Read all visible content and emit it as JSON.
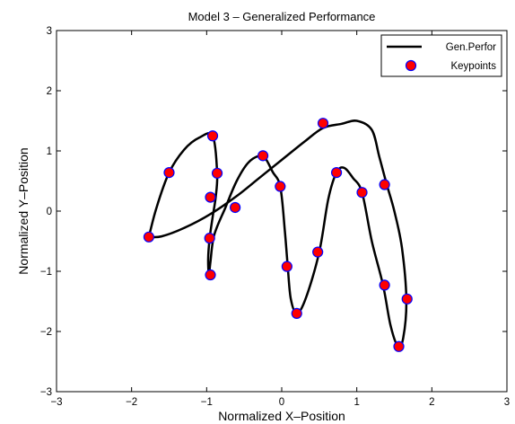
{
  "chart_data": {
    "type": "line",
    "title": "Model 3 – Generalized Performance",
    "xlabel": "Normalized X–Position",
    "ylabel": "Normalized Y–Position",
    "xlim": [
      -3,
      3
    ],
    "ylim": [
      -3,
      3
    ],
    "xticks": [
      -3,
      -2,
      -1,
      0,
      1,
      2,
      3
    ],
    "yticks": [
      -3,
      -2,
      -1,
      0,
      1,
      2,
      3
    ],
    "xtick_labels": [
      "−3",
      "−2",
      "−1",
      "0",
      "1",
      "2",
      "3"
    ],
    "ytick_labels": [
      "−3",
      "−2",
      "−1",
      "0",
      "1",
      "2",
      "3"
    ],
    "grid": false,
    "legend_position": "top-right",
    "colors": {
      "line": "#000000",
      "marker_fill": "#ff0000",
      "marker_edge": "#0000ff"
    },
    "series": [
      {
        "name": "Gen.Perfor",
        "style": "line",
        "x": [
          -1.77,
          -1.67,
          -1.5,
          -1.3,
          -1.1,
          -0.92,
          -0.86,
          -0.88,
          -0.92,
          -0.96,
          -0.98,
          -0.97,
          -0.95,
          -0.9,
          -0.75,
          -0.6,
          -0.45,
          -0.3,
          -0.22,
          -0.12,
          -0.02,
          0.04,
          0.08,
          0.12,
          0.2,
          0.32,
          0.5,
          0.62,
          0.73,
          0.83,
          0.95,
          1.07,
          1.2,
          1.35,
          1.45,
          1.55,
          1.62,
          1.66,
          1.6,
          1.5,
          1.4,
          1.3,
          1.2,
          1.0,
          0.8,
          0.55,
          0.3,
          0.0,
          -0.3,
          -0.6,
          -0.95,
          -1.3,
          -1.6,
          -1.77
        ],
        "y": [
          -0.43,
          0.05,
          0.64,
          1.02,
          1.22,
          1.25,
          0.63,
          0.23,
          -0.1,
          -0.45,
          -0.8,
          -1.06,
          -0.85,
          -0.4,
          0.06,
          0.5,
          0.8,
          0.92,
          0.88,
          0.65,
          0.41,
          -0.3,
          -0.92,
          -1.45,
          -1.7,
          -1.45,
          -0.68,
          0.2,
          0.64,
          0.72,
          0.55,
          0.31,
          -0.5,
          -1.23,
          -1.9,
          -2.25,
          -2.1,
          -1.46,
          -0.6,
          0.0,
          0.44,
          0.9,
          1.35,
          1.5,
          1.45,
          1.38,
          1.15,
          0.85,
          0.55,
          0.25,
          -0.05,
          -0.28,
          -0.42,
          -0.43
        ]
      },
      {
        "name": "Keypoints",
        "style": "markers",
        "x": [
          -1.77,
          -1.5,
          -0.92,
          -0.86,
          -0.95,
          -0.96,
          -0.95,
          -0.62,
          -0.25,
          -0.02,
          0.07,
          0.2,
          0.48,
          0.73,
          1.07,
          1.37,
          1.56,
          1.67,
          1.37,
          0.55
        ],
        "y": [
          -0.43,
          0.64,
          1.25,
          0.63,
          0.23,
          -0.45,
          -1.06,
          0.06,
          0.92,
          0.41,
          -0.92,
          -1.7,
          -0.68,
          0.64,
          0.31,
          -1.23,
          -2.25,
          -1.46,
          0.44,
          1.46
        ]
      }
    ]
  }
}
